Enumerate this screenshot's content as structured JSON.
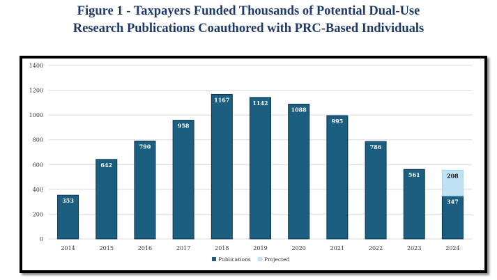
{
  "title": {
    "line1": "Figure 1 - Taxpayers Funded Thousands of Potential Dual-Use",
    "line2": "Research Publications Coauthored with PRC-Based Individuals"
  },
  "chart_data": {
    "type": "bar",
    "stacked": true,
    "title": "Figure 1 - Taxpayers Funded Thousands of Potential Dual-Use Research Publications Coauthored with PRC-Based Individuals",
    "categories": [
      "2014",
      "2015",
      "2016",
      "2017",
      "2018",
      "2019",
      "2020",
      "2021",
      "2022",
      "2023",
      "2024"
    ],
    "series": [
      {
        "name": "Publications",
        "color": "#1b5e80",
        "values": [
          353,
          642,
          790,
          958,
          1167,
          1142,
          1088,
          995,
          786,
          561,
          347
        ]
      },
      {
        "name": "Projected",
        "color": "#bfe1f2",
        "values": [
          null,
          null,
          null,
          null,
          null,
          null,
          null,
          null,
          null,
          null,
          208
        ]
      }
    ],
    "ylim": [
      0,
      1400
    ],
    "yticks": [
      "0",
      "200",
      "400",
      "600",
      "800",
      "1000",
      "1200",
      "1400"
    ],
    "grid": true,
    "legend": "bottom",
    "xlabel": "",
    "ylabel": ""
  }
}
